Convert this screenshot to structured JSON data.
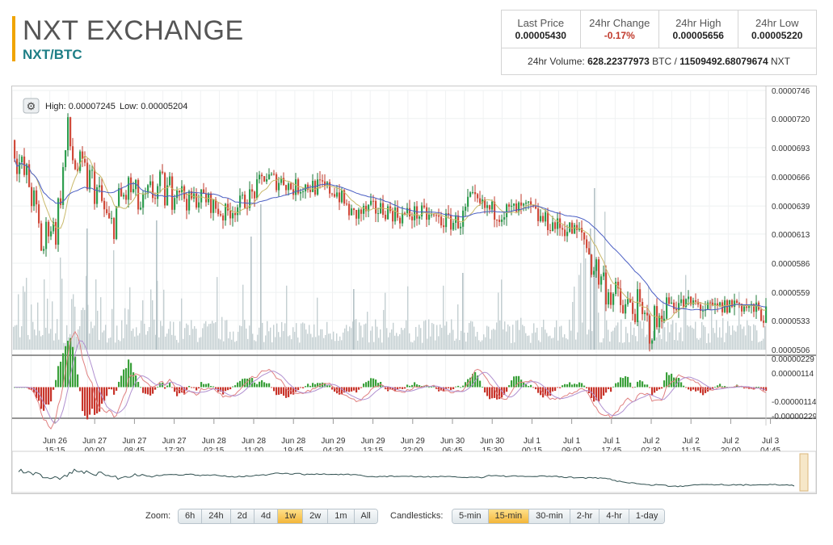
{
  "header": {
    "title": "NXT EXCHANGE",
    "pair": "NXT/BTC"
  },
  "stats": {
    "last_price_label": "Last Price",
    "last_price": "0.00005430",
    "change_label": "24hr Change",
    "change": "-0.17%",
    "high_label": "24hr High",
    "high": "0.00005656",
    "low_label": "24hr Low",
    "low": "0.00005220",
    "volume_prefix": "24hr Volume:",
    "volume_btc": "628.22377973",
    "volume_btc_unit": "BTC /",
    "volume_nxt": "11509492.68079674",
    "volume_nxt_unit": "NXT"
  },
  "chart": {
    "high_text": "High: 0.00007245",
    "low_text": "Low: 0.00005204",
    "settings_icon": "gear-icon"
  },
  "chart_data": {
    "type": "candlestick",
    "price_ticks": [
      "0.0000746",
      "0.0000720",
      "0.0000693",
      "0.0000666",
      "0.0000639",
      "0.0000613",
      "0.0000586",
      "0.0000559",
      "0.0000533",
      "0.0000506"
    ],
    "macd_ticks": [
      "0.00000229",
      "0.00000114",
      "-0.00000114",
      "-0.00000229"
    ],
    "x_ticks": [
      {
        "d": "Jun 26",
        "t": "15:15"
      },
      {
        "d": "Jun 27",
        "t": "00:00"
      },
      {
        "d": "Jun 27",
        "t": "08:45"
      },
      {
        "d": "Jun 27",
        "t": "17:30"
      },
      {
        "d": "Jun 28",
        "t": "02:15"
      },
      {
        "d": "Jun 28",
        "t": "11:00"
      },
      {
        "d": "Jun 28",
        "t": "19:45"
      },
      {
        "d": "Jun 29",
        "t": "04:30"
      },
      {
        "d": "Jun 29",
        "t": "13:15"
      },
      {
        "d": "Jun 29",
        "t": "22:00"
      },
      {
        "d": "Jun 30",
        "t": "06:45"
      },
      {
        "d": "Jun 30",
        "t": "15:30"
      },
      {
        "d": "Jul 1",
        "t": "00:15"
      },
      {
        "d": "Jul 1",
        "t": "09:00"
      },
      {
        "d": "Jul 1",
        "t": "17:45"
      },
      {
        "d": "Jul 2",
        "t": "02:30"
      },
      {
        "d": "Jul 2",
        "t": "11:15"
      },
      {
        "d": "Jul 2",
        "t": "20:00"
      },
      {
        "d": "Jul 3",
        "t": "04:45"
      }
    ],
    "price_path": [
      [
        0,
        7e-05
      ],
      [
        10,
        6.72e-05
      ],
      [
        20,
        6.6e-05
      ],
      [
        30,
        6.25e-05
      ],
      [
        37,
        5.95e-05
      ],
      [
        45,
        6.3e-05
      ],
      [
        52,
        6.12e-05
      ],
      [
        60,
        6.6e-05
      ],
      [
        68,
        7.05e-05
      ],
      [
        75,
        6.8e-05
      ],
      [
        85,
        6.68e-05
      ],
      [
        100,
        6.6e-05
      ],
      [
        110,
        6.4e-05
      ],
      [
        120,
        6.15e-05
      ],
      [
        130,
        6.4e-05
      ],
      [
        145,
        6.55e-05
      ],
      [
        160,
        6.33e-05
      ],
      [
        175,
        6.55e-05
      ],
      [
        190,
        6.5e-05
      ],
      [
        205,
        6.58e-05
      ],
      [
        215,
        6.43e-05
      ],
      [
        235,
        6.48e-05
      ],
      [
        260,
        6.31e-05
      ],
      [
        280,
        6.4e-05
      ],
      [
        300,
        6.52e-05
      ],
      [
        310,
        6.67e-05
      ],
      [
        325,
        6.62e-05
      ],
      [
        335,
        6.63e-05
      ],
      [
        345,
        6.55e-05
      ],
      [
        360,
        6.58e-05
      ],
      [
        380,
        6.56e-05
      ],
      [
        400,
        6.53e-05
      ],
      [
        420,
        6.3e-05
      ],
      [
        440,
        6.35e-05
      ],
      [
        460,
        6.36e-05
      ],
      [
        480,
        6.3e-05
      ],
      [
        500,
        6.32e-05
      ],
      [
        520,
        6.28e-05
      ],
      [
        540,
        6.24e-05
      ],
      [
        555,
        6.25e-05
      ],
      [
        565,
        6.45e-05
      ],
      [
        580,
        6.38e-05
      ],
      [
        600,
        6.33e-05
      ],
      [
        620,
        6.35e-05
      ],
      [
        640,
        6.36e-05
      ],
      [
        650,
        6.28e-05
      ],
      [
        670,
        6.21e-05
      ],
      [
        690,
        6.17e-05
      ],
      [
        705,
        6.13e-05
      ],
      [
        715,
        5.9e-05
      ],
      [
        725,
        5.75e-05
      ],
      [
        740,
        5.6e-05
      ],
      [
        755,
        5.42e-05
      ],
      [
        770,
        5.48e-05
      ],
      [
        780,
        5.3e-05
      ],
      [
        790,
        5.28e-05
      ],
      [
        800,
        5.33e-05
      ],
      [
        810,
        5.5e-05
      ],
      [
        830,
        5.48e-05
      ],
      [
        845,
        5.48e-05
      ],
      [
        860,
        5.42e-05
      ],
      [
        880,
        5.45e-05
      ],
      [
        895,
        5.5e-05
      ],
      [
        915,
        5.43e-05
      ],
      [
        930,
        5.38e-05
      ]
    ],
    "series": [
      {
        "name": "price",
        "color": "#333333"
      },
      {
        "name": "moving average long",
        "color": "#4b5fc4"
      },
      {
        "name": "moving average short",
        "color": "#c9b96a"
      },
      {
        "name": "volume",
        "color": "#b8c4c8"
      },
      {
        "name": "macd histogram",
        "color": "#3aa03a"
      },
      {
        "name": "macd line",
        "color": "#e08080"
      },
      {
        "name": "signal line",
        "color": "#b090d0"
      }
    ],
    "ylim": [
      5.06e-05,
      7.46e-05
    ]
  },
  "zoom": {
    "label": "Zoom:",
    "options": [
      "6h",
      "24h",
      "2d",
      "4d",
      "1w",
      "2w",
      "1m",
      "All"
    ],
    "active": "1w"
  },
  "candles": {
    "label": "Candlesticks:",
    "options": [
      "5-min",
      "15-min",
      "30-min",
      "2-hr",
      "4-hr",
      "1-day"
    ],
    "active": "15-min"
  }
}
